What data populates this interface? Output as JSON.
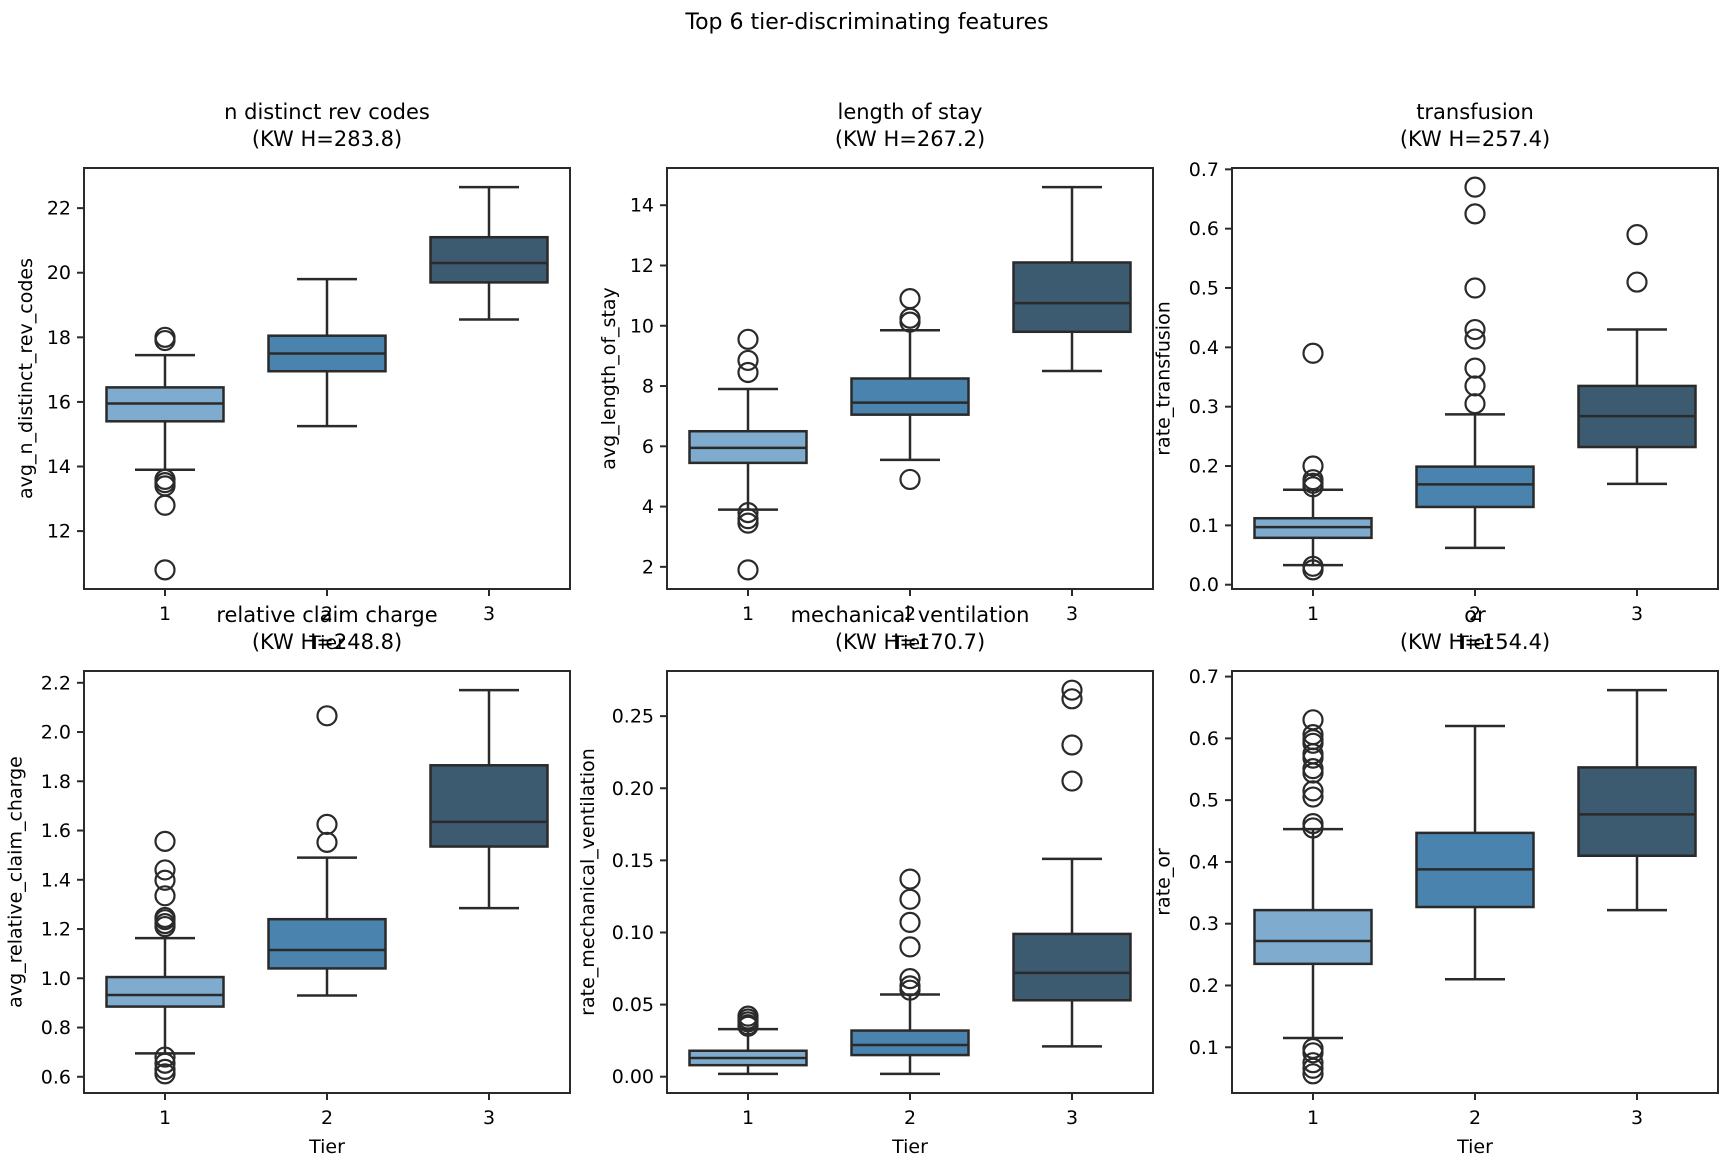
{
  "colors": {
    "tier1": "#7FACCE",
    "tier2": "#4A83AE",
    "tier3": "#3C5B70",
    "line": "#2A2A2A",
    "text": "#000000",
    "background": "#FFFFFF"
  },
  "chart_data": {
    "type": "boxplot",
    "suptitle": "Top 6 tier-discriminating features",
    "grid": {
      "rows": 2,
      "cols": 3
    },
    "xlabel": "Tier",
    "categories": [
      "1",
      "2",
      "3"
    ],
    "subplots": [
      {
        "id": "n-distinct-rev-codes",
        "title": "n distinct rev codes",
        "subtitle": "(KW H=283.8)",
        "ylabel": "avg_n_distinct_rev_codes",
        "xlabel": "Tier",
        "categories": [
          "1",
          "2",
          "3"
        ],
        "yticklabels": [
          "12",
          "14",
          "16",
          "18",
          "20",
          "22"
        ],
        "boxes": [
          {
            "tier": "1",
            "whisker_low": 13.9,
            "q1": 15.4,
            "median": 15.95,
            "q3": 16.45,
            "whisker_high": 17.45,
            "outliers": [
              18.0,
              17.9,
              13.6,
              13.5,
              13.4,
              12.8,
              10.8
            ]
          },
          {
            "tier": "2",
            "whisker_low": 15.25,
            "q1": 16.95,
            "median": 17.5,
            "q3": 18.05,
            "whisker_high": 19.8,
            "outliers": []
          },
          {
            "tier": "3",
            "whisker_low": 18.55,
            "q1": 19.7,
            "median": 20.3,
            "q3": 21.1,
            "whisker_high": 22.65,
            "outliers": []
          }
        ]
      },
      {
        "id": "length-of-stay",
        "title": "length of stay",
        "subtitle": "(KW H=267.2)",
        "ylabel": "avg_length_of_stay",
        "xlabel": "Tier",
        "categories": [
          "1",
          "2",
          "3"
        ],
        "yticklabels": [
          "2",
          "4",
          "6",
          "8",
          "10",
          "12",
          "14"
        ],
        "boxes": [
          {
            "tier": "1",
            "whisker_low": 3.9,
            "q1": 5.45,
            "median": 5.95,
            "q3": 6.5,
            "whisker_high": 7.9,
            "outliers": [
              9.55,
              8.85,
              8.45,
              3.8,
              3.6,
              3.45,
              1.9
            ]
          },
          {
            "tier": "2",
            "whisker_low": 5.55,
            "q1": 7.05,
            "median": 7.45,
            "q3": 8.25,
            "whisker_high": 9.85,
            "outliers": [
              10.9,
              10.25,
              10.12,
              4.9
            ]
          },
          {
            "tier": "3",
            "whisker_low": 8.5,
            "q1": 9.8,
            "median": 10.75,
            "q3": 12.1,
            "whisker_high": 14.6,
            "outliers": []
          }
        ]
      },
      {
        "id": "transfusion",
        "title": "transfusion",
        "subtitle": "(KW H=257.4)",
        "ylabel": "rate_transfusion",
        "xlabel": "Tier",
        "categories": [
          "1",
          "2",
          "3"
        ],
        "yticklabels": [
          "0.0",
          "0.1",
          "0.2",
          "0.3",
          "0.4",
          "0.5",
          "0.6",
          "0.7"
        ],
        "boxes": [
          {
            "tier": "1",
            "whisker_low": 0.033,
            "q1": 0.079,
            "median": 0.097,
            "q3": 0.112,
            "whisker_high": 0.16,
            "outliers": [
              0.39,
              0.2,
              0.177,
              0.171,
              0.165,
              0.031,
              0.025
            ]
          },
          {
            "tier": "2",
            "whisker_low": 0.062,
            "q1": 0.131,
            "median": 0.169,
            "q3": 0.199,
            "whisker_high": 0.287,
            "outliers": [
              0.67,
              0.625,
              0.5,
              0.43,
              0.414,
              0.365,
              0.335,
              0.305
            ]
          },
          {
            "tier": "3",
            "whisker_low": 0.17,
            "q1": 0.232,
            "median": 0.284,
            "q3": 0.335,
            "whisker_high": 0.43,
            "outliers": [
              0.59,
              0.51
            ]
          }
        ]
      },
      {
        "id": "relative-claim-charge",
        "title": "relative claim charge",
        "subtitle": "(KW H=248.8)",
        "ylabel": "avg_relative_claim_charge",
        "xlabel": "Tier",
        "categories": [
          "1",
          "2",
          "3"
        ],
        "yticklabels": [
          "0.6",
          "0.8",
          "1.0",
          "1.2",
          "1.4",
          "1.6",
          "1.8",
          "2.0",
          "2.2"
        ],
        "boxes": [
          {
            "tier": "1",
            "whisker_low": 0.695,
            "q1": 0.885,
            "median": 0.932,
            "q3": 1.005,
            "whisker_high": 1.163,
            "outliers": [
              1.556,
              1.44,
              1.398,
              1.335,
              1.247,
              1.238,
              1.222,
              1.21,
              0.68,
              0.655,
              0.63,
              0.612
            ]
          },
          {
            "tier": "2",
            "whisker_low": 0.93,
            "q1": 1.04,
            "median": 1.115,
            "q3": 1.24,
            "whisker_high": 1.49,
            "outliers": [
              2.066,
              1.625,
              1.552
            ]
          },
          {
            "tier": "3",
            "whisker_low": 1.285,
            "q1": 1.535,
            "median": 1.635,
            "q3": 1.865,
            "whisker_high": 2.17,
            "outliers": []
          }
        ]
      },
      {
        "id": "mechanical-ventilation",
        "title": "mechanical ventilation",
        "subtitle": "(KW H=170.7)",
        "ylabel": "rate_mechanical_ventilation",
        "xlabel": "Tier",
        "categories": [
          "1",
          "2",
          "3"
        ],
        "yticklabels": [
          "0.00",
          "0.05",
          "0.10",
          "0.15",
          "0.20",
          "0.25"
        ],
        "boxes": [
          {
            "tier": "1",
            "whisker_low": 0.002,
            "q1": 0.008,
            "median": 0.013,
            "q3": 0.018,
            "whisker_high": 0.033,
            "outliers": [
              0.042,
              0.04,
              0.038,
              0.036,
              0.035
            ]
          },
          {
            "tier": "2",
            "whisker_low": 0.002,
            "q1": 0.015,
            "median": 0.022,
            "q3": 0.032,
            "whisker_high": 0.057,
            "outliers": [
              0.137,
              0.123,
              0.107,
              0.09,
              0.068,
              0.063,
              0.06
            ]
          },
          {
            "tier": "3",
            "whisker_low": 0.021,
            "q1": 0.053,
            "median": 0.072,
            "q3": 0.099,
            "whisker_high": 0.151,
            "outliers": [
              0.268,
              0.262,
              0.23,
              0.205
            ]
          }
        ]
      },
      {
        "id": "or",
        "title": "or",
        "subtitle": "(KW H=154.4)",
        "ylabel": "rate_or",
        "xlabel": "Tier",
        "categories": [
          "1",
          "2",
          "3"
        ],
        "yticklabels": [
          "0.1",
          "0.2",
          "0.3",
          "0.4",
          "0.5",
          "0.6",
          "0.7"
        ],
        "boxes": [
          {
            "tier": "1",
            "whisker_low": 0.115,
            "q1": 0.235,
            "median": 0.272,
            "q3": 0.322,
            "whisker_high": 0.453,
            "outliers": [
              0.63,
              0.606,
              0.598,
              0.592,
              0.575,
              0.568,
              0.551,
              0.544,
              0.515,
              0.505,
              0.462,
              0.455,
              0.098,
              0.091,
              0.075,
              0.066,
              0.057
            ]
          },
          {
            "tier": "2",
            "whisker_low": 0.21,
            "q1": 0.327,
            "median": 0.388,
            "q3": 0.447,
            "whisker_high": 0.62,
            "outliers": []
          },
          {
            "tier": "3",
            "whisker_low": 0.322,
            "q1": 0.41,
            "median": 0.477,
            "q3": 0.553,
            "whisker_high": 0.678,
            "outliers": []
          }
        ]
      }
    ]
  }
}
